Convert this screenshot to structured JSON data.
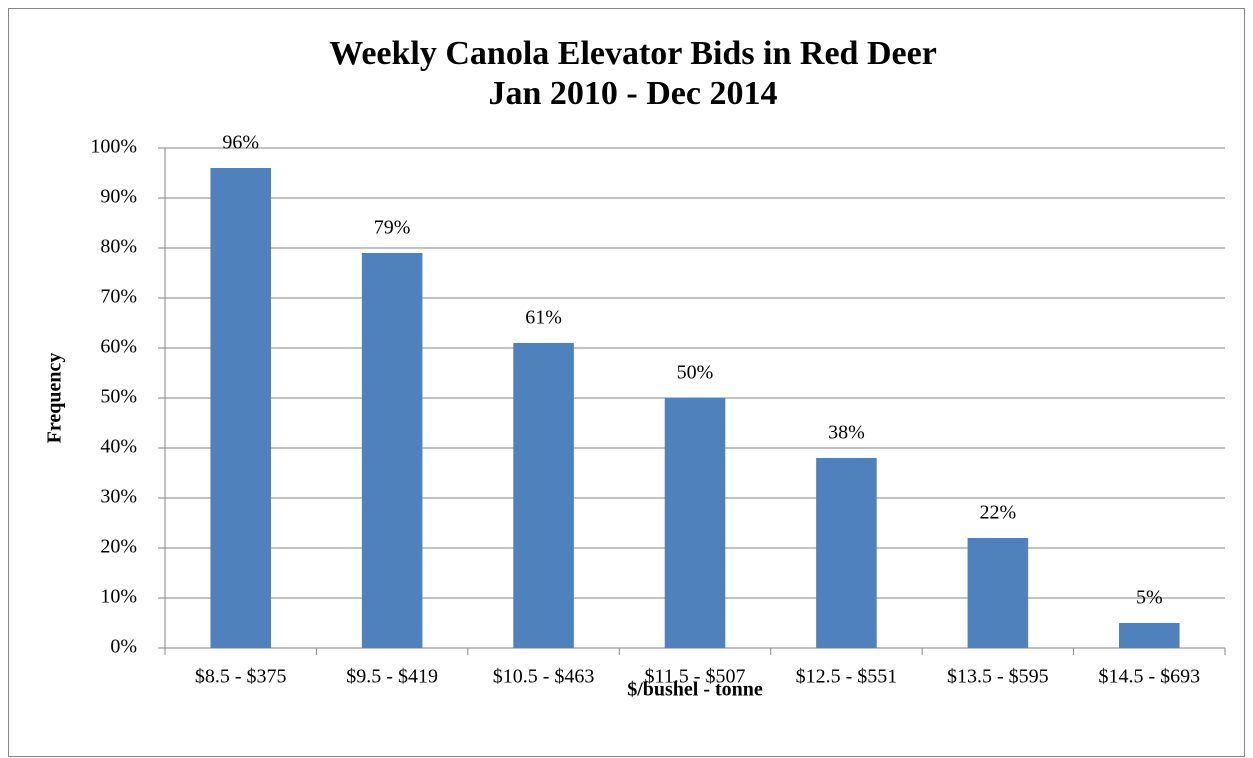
{
  "chart_data": {
    "type": "bar",
    "title": "Weekly Canola Elevator Bids in Red Deer",
    "subtitle": "Jan 2010 - Dec 2014",
    "x_label": "$/bushel - tonne",
    "y_label": "Frequency",
    "categories": [
      "$8.5 - $375",
      "$9.5 - $419",
      "$10.5 - $463",
      "$11.5 - $507",
      "$12.5 - $551",
      "$13.5 - $595",
      "$14.5 - $693"
    ],
    "values": [
      96,
      79,
      61,
      50,
      38,
      22,
      5
    ],
    "value_labels": [
      "96%",
      "79%",
      "61%",
      "50%",
      "38%",
      "22%",
      "5%"
    ],
    "color": "#4f81bd",
    "ylim": [
      0,
      100
    ],
    "yticks": [
      {
        "value": 0,
        "label": "0%"
      },
      {
        "value": 10,
        "label": "10%"
      },
      {
        "value": 20,
        "label": "20%"
      },
      {
        "value": 30,
        "label": "30%"
      },
      {
        "value": 40,
        "label": "40%"
      },
      {
        "value": 50,
        "label": "50%"
      },
      {
        "value": 60,
        "label": "60%"
      },
      {
        "value": 70,
        "label": "70%"
      },
      {
        "value": 80,
        "label": "80%"
      },
      {
        "value": 90,
        "label": "90%"
      },
      {
        "value": 100,
        "label": "100%"
      }
    ],
    "grid": true
  }
}
